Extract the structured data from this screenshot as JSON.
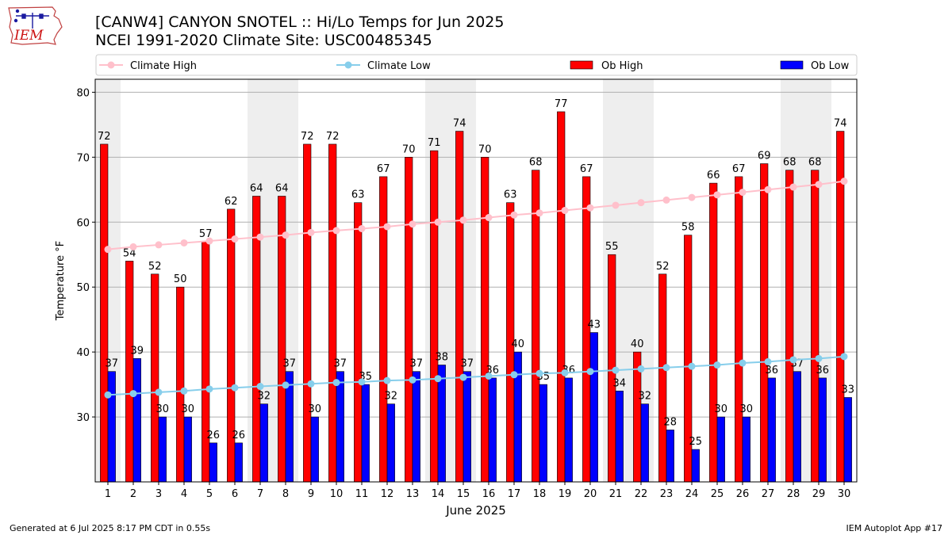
{
  "header": {
    "logo_text": "IEM",
    "title_line1": "[CANW4] CANYON SNOTEL :: Hi/Lo Temps for Jun 2025",
    "title_line2": "NCEI 1991-2020 Climate Site: USC00485345"
  },
  "footer": {
    "left": "Generated at 6 Jul 2025 8:17 PM CDT in 0.55s",
    "right": "IEM Autoplot App #17"
  },
  "colors": {
    "ob_high": "#ff0000",
    "ob_low": "#0000ff",
    "climate_high": "#ffc0cb",
    "climate_low": "#87ceeb",
    "weekend_band": "#eeeeee",
    "grid": "#b0b0b0"
  },
  "chart_data": {
    "type": "bar",
    "xlabel": "June 2025",
    "ylabel": "Temperature °F",
    "ylim": [
      20,
      82
    ],
    "yticks": [
      30,
      40,
      50,
      60,
      70,
      80
    ],
    "grid": "horizontal",
    "legend_position": "top",
    "categories": [
      "1",
      "2",
      "3",
      "4",
      "5",
      "6",
      "7",
      "8",
      "9",
      "10",
      "11",
      "12",
      "13",
      "14",
      "15",
      "16",
      "17",
      "18",
      "19",
      "20",
      "21",
      "22",
      "23",
      "24",
      "25",
      "26",
      "27",
      "28",
      "29",
      "30"
    ],
    "shaded_days": [
      1,
      7,
      8,
      14,
      15,
      21,
      22,
      28,
      29
    ],
    "series": [
      {
        "name": "Ob High",
        "kind": "bar",
        "values": [
          72,
          54,
          52,
          50,
          57,
          62,
          64,
          64,
          72,
          72,
          63,
          67,
          70,
          71,
          74,
          70,
          63,
          68,
          77,
          67,
          55,
          40,
          52,
          58,
          66,
          67,
          69,
          68,
          68,
          74
        ]
      },
      {
        "name": "Ob Low",
        "kind": "bar",
        "values": [
          37,
          39,
          30,
          30,
          26,
          26,
          32,
          37,
          30,
          37,
          35,
          32,
          37,
          38,
          37,
          36,
          40,
          35,
          36,
          43,
          34,
          32,
          28,
          25,
          30,
          30,
          36,
          37,
          36,
          33
        ]
      },
      {
        "name": "Climate High",
        "kind": "line",
        "values": [
          55.8,
          56.2,
          56.5,
          56.8,
          57.1,
          57.4,
          57.7,
          58.0,
          58.4,
          58.7,
          59.0,
          59.3,
          59.7,
          60.0,
          60.3,
          60.7,
          61.1,
          61.4,
          61.8,
          62.2,
          62.6,
          63.0,
          63.4,
          63.8,
          64.2,
          64.6,
          65.0,
          65.4,
          65.8,
          66.3
        ]
      },
      {
        "name": "Climate Low",
        "kind": "line",
        "values": [
          33.4,
          33.6,
          33.8,
          34.0,
          34.3,
          34.5,
          34.7,
          34.9,
          35.1,
          35.3,
          35.4,
          35.6,
          35.7,
          35.9,
          36.1,
          36.3,
          36.5,
          36.7,
          36.8,
          37.0,
          37.2,
          37.4,
          37.6,
          37.8,
          38.0,
          38.3,
          38.5,
          38.8,
          39.0,
          39.3
        ]
      }
    ]
  }
}
